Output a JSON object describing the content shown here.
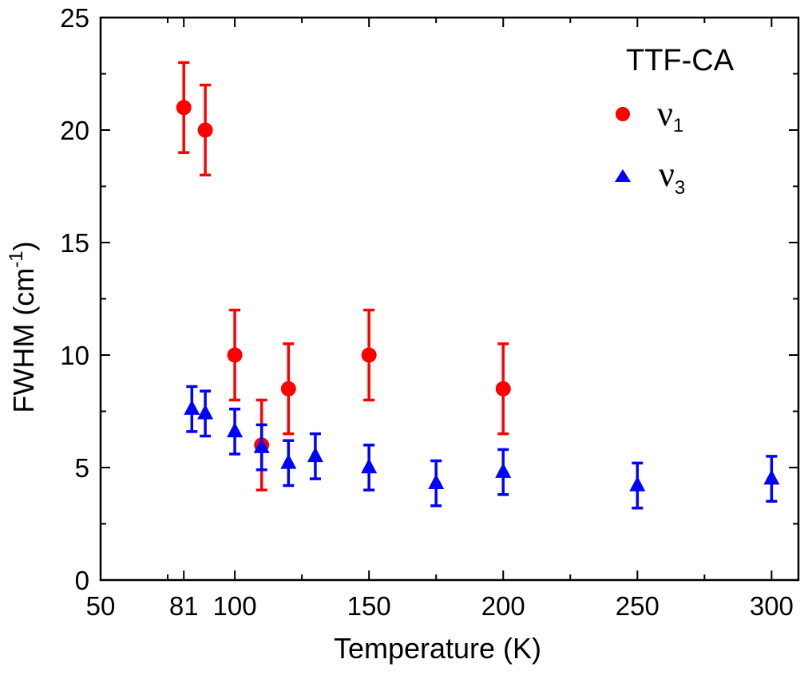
{
  "chart_data": {
    "type": "scatter",
    "title": "",
    "xlabel": "Temperature (K)",
    "ylabel": "FWHM (cm",
    "ylabel_superscript": "-1",
    "ylabel_close": ")",
    "xlim": [
      50,
      310
    ],
    "ylim": [
      0,
      25
    ],
    "x_ticks": [
      50,
      81,
      100,
      150,
      200,
      250,
      300
    ],
    "x_tick_labels": [
      "50",
      "81",
      "100",
      "150",
      "200",
      "250",
      "300"
    ],
    "x_minor_ticks": [
      75,
      125,
      175,
      225,
      275
    ],
    "y_ticks": [
      0,
      5,
      10,
      15,
      20,
      25
    ],
    "y_tick_labels": [
      "0",
      "5",
      "10",
      "15",
      "20",
      "25"
    ],
    "y_minor_ticks": [
      2.5,
      7.5,
      12.5,
      17.5,
      22.5
    ],
    "legend_title": "TTF-CA",
    "legend_position": "top-right",
    "series": [
      {
        "name": "ν1",
        "label_main": "ν",
        "label_sub": "1",
        "color": "#ff0000",
        "marker": "circle",
        "points": [
          {
            "x": 81,
            "y": 21,
            "err": 2
          },
          {
            "x": 89,
            "y": 20,
            "err": 2
          },
          {
            "x": 100,
            "y": 10,
            "err": 2
          },
          {
            "x": 110,
            "y": 6,
            "err": 2
          },
          {
            "x": 120,
            "y": 8.5,
            "err": 2
          },
          {
            "x": 150,
            "y": 10,
            "err": 2
          },
          {
            "x": 200,
            "y": 8.5,
            "err": 2
          }
        ]
      },
      {
        "name": "ν3",
        "label_main": "ν",
        "label_sub": "3",
        "color": "#0000ff",
        "marker": "triangle",
        "points": [
          {
            "x": 84,
            "y": 7.6,
            "err": 1
          },
          {
            "x": 89,
            "y": 7.4,
            "err": 1
          },
          {
            "x": 100,
            "y": 6.6,
            "err": 1
          },
          {
            "x": 110,
            "y": 5.9,
            "err": 1
          },
          {
            "x": 120,
            "y": 5.2,
            "err": 1
          },
          {
            "x": 130,
            "y": 5.5,
            "err": 1
          },
          {
            "x": 150,
            "y": 5.0,
            "err": 1
          },
          {
            "x": 175,
            "y": 4.3,
            "err": 1
          },
          {
            "x": 200,
            "y": 4.8,
            "err": 1
          },
          {
            "x": 250,
            "y": 4.2,
            "err": 1
          },
          {
            "x": 300,
            "y": 4.5,
            "err": 1
          }
        ]
      }
    ]
  }
}
